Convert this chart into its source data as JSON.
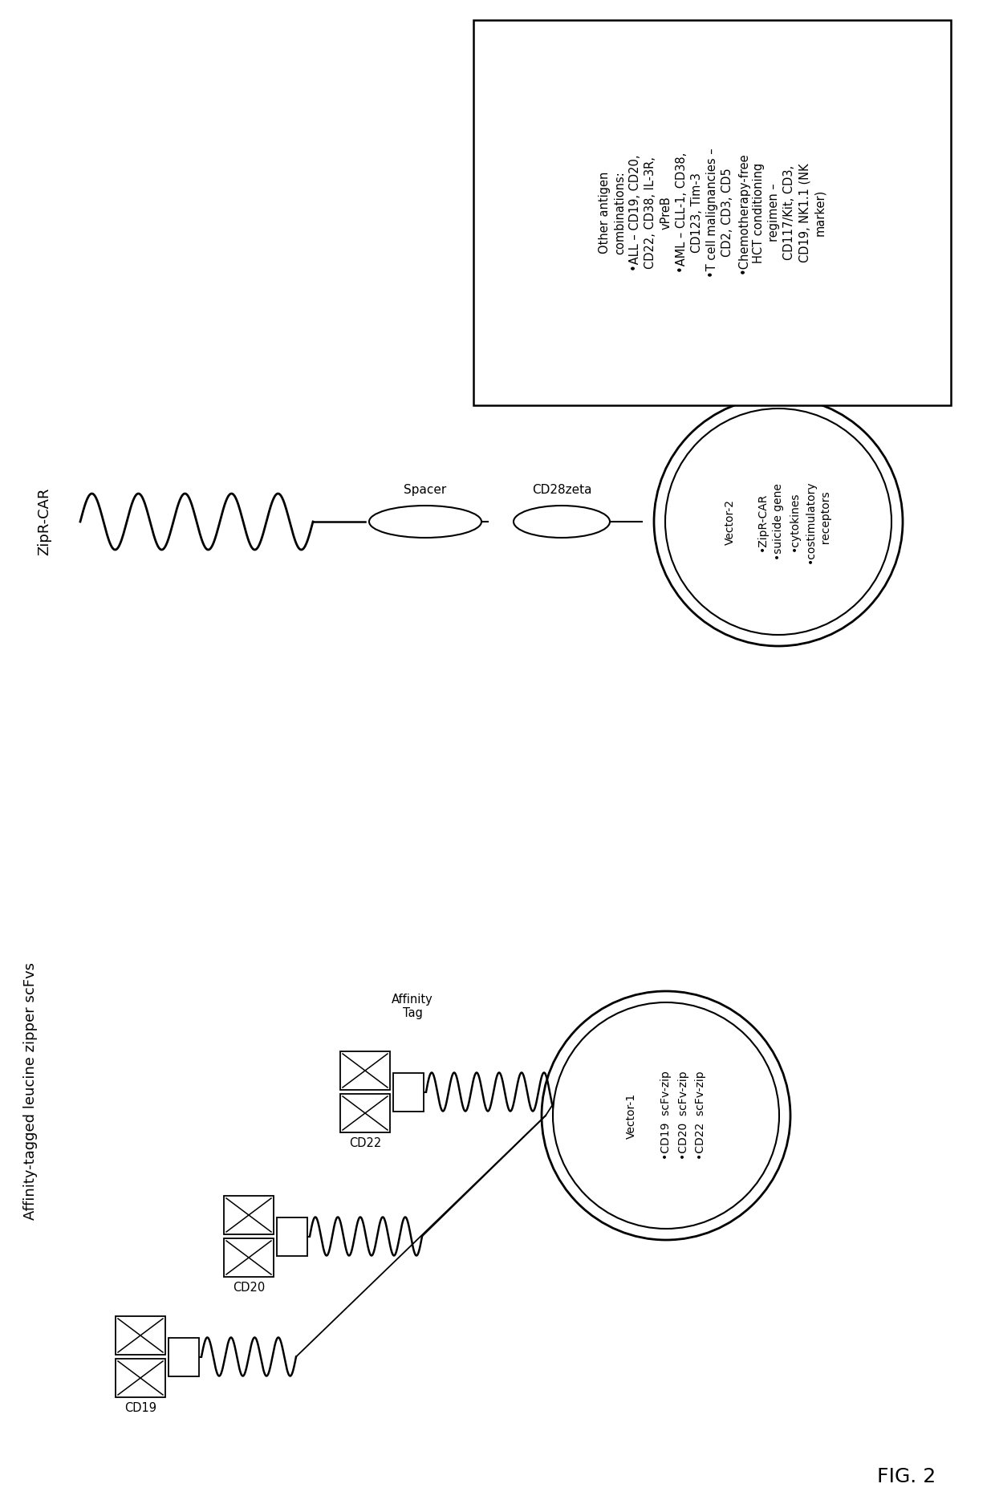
{
  "fig_label": "FIG. 2",
  "background_color": "#ffffff",
  "title_left": "Affinity-tagged leucine zipper scFvs",
  "title_right": "ZipR-CAR",
  "scfv_labels": [
    "CD19",
    "CD20",
    "CD22"
  ],
  "affinity_tag_label": "Affinity\nTag",
  "spacer_label": "Spacer",
  "cd28zeta_label": "CD28zeta",
  "vector1_title": "Vector-1",
  "vector1_items": [
    "•CD19  scFv-zip",
    "•CD20  scFv-zip",
    "•CD22  scFv-zip"
  ],
  "vector2_title": "Vector-2",
  "vector2_items": [
    "•ZipR-CAR",
    "•suicide gene",
    "•cytokines",
    "•costimulatory\n  receptors"
  ],
  "box_line1": "Other antigen",
  "box_line2": "combinations:",
  "box_bullets": [
    "•ALL – CD19, CD20,\n CD22, CD38, IL-3R,\n vPreB",
    "•AML – CLL-1, CD38,\n CD123, Tim-3",
    "•T cell malignancies –\n CD2, CD3, CD5",
    "•Chemotherapy-free\n HCT conditioning\n regimen –\n CD117/Kit, CD3,\n CD19, NK1.1 (NK\n marker)"
  ]
}
